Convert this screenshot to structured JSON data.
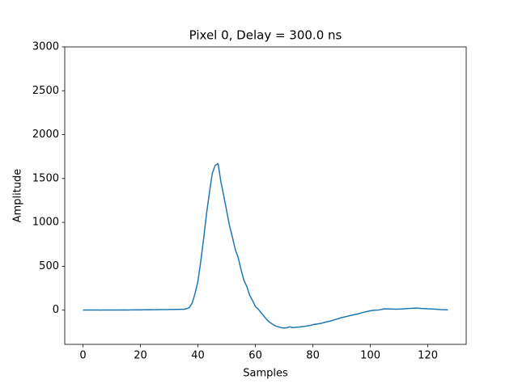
{
  "chart_data": {
    "type": "line",
    "title": "Pixel 0, Delay = 300.0 ns",
    "xlabel": "Samples",
    "ylabel": "Amplitude",
    "x": [
      0,
      1,
      2,
      3,
      4,
      5,
      6,
      7,
      8,
      9,
      10,
      11,
      12,
      13,
      14,
      15,
      16,
      17,
      18,
      19,
      20,
      21,
      22,
      23,
      24,
      25,
      26,
      27,
      28,
      29,
      30,
      31,
      32,
      33,
      34,
      35,
      36,
      37,
      38,
      39,
      40,
      41,
      42,
      43,
      44,
      45,
      46,
      47,
      48,
      49,
      50,
      51,
      52,
      53,
      54,
      55,
      56,
      57,
      58,
      59,
      60,
      61,
      62,
      63,
      64,
      65,
      66,
      67,
      68,
      69,
      70,
      71,
      72,
      73,
      74,
      75,
      76,
      77,
      78,
      79,
      80,
      81,
      82,
      83,
      84,
      85,
      86,
      87,
      88,
      89,
      90,
      91,
      92,
      93,
      94,
      95,
      96,
      97,
      98,
      99,
      100,
      101,
      102,
      103,
      104,
      105,
      106,
      107,
      108,
      109,
      110,
      111,
      112,
      113,
      114,
      115,
      116,
      117,
      118,
      119,
      120,
      121,
      122,
      123,
      124,
      125,
      126,
      127
    ],
    "series": [
      {
        "name": "Pixel 0",
        "color": "#1f77b4",
        "values": [
          0,
          1,
          1,
          1,
          1,
          1,
          0,
          1,
          1,
          2,
          1,
          2,
          2,
          2,
          3,
          2,
          2,
          3,
          3,
          4,
          3,
          4,
          4,
          5,
          4,
          5,
          5,
          6,
          6,
          6,
          7,
          7,
          8,
          8,
          9,
          10,
          15,
          30,
          80,
          190,
          330,
          560,
          820,
          1100,
          1340,
          1560,
          1650,
          1670,
          1460,
          1300,
          1130,
          960,
          830,
          690,
          600,
          460,
          340,
          270,
          170,
          110,
          40,
          10,
          -30,
          -70,
          -110,
          -140,
          -160,
          -180,
          -190,
          -200,
          -205,
          -200,
          -190,
          -200,
          -195,
          -193,
          -190,
          -185,
          -180,
          -175,
          -165,
          -160,
          -155,
          -150,
          -140,
          -132,
          -125,
          -115,
          -105,
          -95,
          -85,
          -78,
          -70,
          -62,
          -55,
          -48,
          -40,
          -30,
          -22,
          -15,
          -8,
          -3,
          0,
          2,
          8,
          15,
          14,
          13,
          12,
          11,
          12,
          13,
          15,
          18,
          20,
          22,
          23,
          21,
          18,
          17,
          15,
          14,
          12,
          10,
          7,
          5,
          4,
          3
        ]
      }
    ],
    "xlim": [
      -6.35,
      133.35
    ],
    "ylim": [
      -390,
      3000
    ],
    "xticks": [
      0,
      20,
      40,
      60,
      80,
      100,
      120
    ],
    "yticks": [
      0,
      500,
      1000,
      1500,
      2000,
      2500,
      3000
    ]
  }
}
